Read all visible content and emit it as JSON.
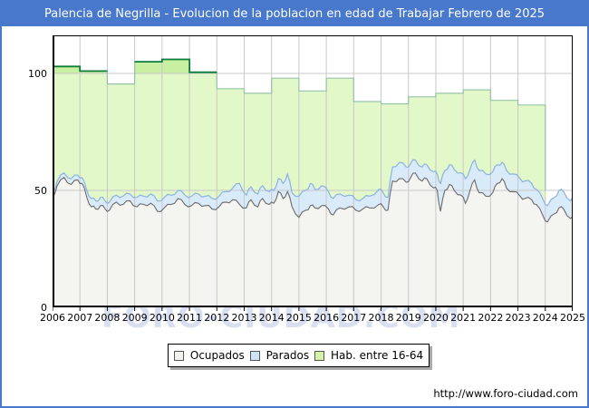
{
  "header": {
    "title": "Palencia de Negrilla - Evolucion de la poblacion en edad de Trabajar Febrero de 2025"
  },
  "watermark": {
    "text": "FORO-CIUDAD.COM"
  },
  "footer": {
    "url": "http://www.foro-ciudad.com"
  },
  "colors": {
    "frame_blue": "#4778cc",
    "grid": "#c8c8c8",
    "axis": "#000000",
    "hab_fill": "#e2f8c9",
    "hab_fill_above_100": "#c8f0a0",
    "hab_line": "#96c3a8",
    "hab_line_above_100": "#0c7c3c",
    "parados_fill": "#d9eaf9",
    "parados_line": "#8cb2e2",
    "ocupados_fill": "#f4f4f1",
    "ocupados_line": "#6b6b6b"
  },
  "legend": {
    "items": [
      {
        "label": "Ocupados",
        "swatch": "#f2f2ef",
        "border": "#555555"
      },
      {
        "label": "Parados",
        "swatch": "#cfe3f7",
        "border": "#555555"
      },
      {
        "label": "Hab. entre 16-64",
        "swatch": "#d6f2a6",
        "border": "#555555"
      }
    ]
  },
  "chart_data": {
    "type": "area",
    "title": "Palencia de Negrilla - Evolucion de la poblacion en edad de Trabajar Febrero de 2025",
    "xlabel": "",
    "ylabel": "",
    "xlim": [
      2006,
      2025.17
    ],
    "ylim": [
      0,
      116
    ],
    "x_ticks": [
      2006,
      2007,
      2008,
      2009,
      2010,
      2011,
      2012,
      2013,
      2014,
      2015,
      2016,
      2017,
      2018,
      2019,
      2020,
      2021,
      2022,
      2023,
      2024,
      2025
    ],
    "y_ticks": [
      0,
      50,
      100
    ],
    "grid": true,
    "legend_position": "bottom-center",
    "series": [
      {
        "name": "Hab. entre 16-64",
        "render": "annual-steps",
        "note": "steps end at start of 2024; values estimated from gridlines",
        "years": [
          2006,
          2007,
          2008,
          2009,
          2010,
          2011,
          2012,
          2013,
          2014,
          2015,
          2016,
          2017,
          2018,
          2019,
          2020,
          2021,
          2022,
          2023
        ],
        "values": [
          103,
          101,
          95.5,
          105,
          106,
          100.5,
          93.5,
          91.5,
          98,
          92.5,
          98,
          88,
          87,
          90,
          91.5,
          93,
          88.5,
          86.5
        ],
        "ends_at": 2024.0
      },
      {
        "name": "Parados",
        "render": "stacked-area-boundary",
        "note": "boundary shown = Ocupados + Parados (monthly)",
        "x": [
          2006.0,
          2006.17,
          2006.42,
          2006.68,
          2006.92,
          2007.08,
          2007.25,
          2007.42,
          2007.58,
          2007.75,
          2007.92,
          2008.08,
          2008.33,
          2008.58,
          2008.83,
          2009.08,
          2009.33,
          2009.58,
          2009.83,
          2010.08,
          2010.33,
          2010.58,
          2010.83,
          2011.08,
          2011.33,
          2011.58,
          2011.83,
          2012.08,
          2012.33,
          2012.58,
          2012.83,
          2013.08,
          2013.25,
          2013.5,
          2013.67,
          2013.92,
          2014.08,
          2014.25,
          2014.42,
          2014.58,
          2014.75,
          2015.0,
          2015.25,
          2015.42,
          2015.58,
          2015.83,
          2016.08,
          2016.25,
          2016.5,
          2016.83,
          2017.08,
          2017.33,
          2017.58,
          2017.92,
          2018.08,
          2018.25,
          2018.42,
          2018.67,
          2018.92,
          2019.08,
          2019.25,
          2019.5,
          2019.67,
          2019.92,
          2020.05,
          2020.17,
          2020.33,
          2020.5,
          2020.67,
          2020.92,
          2021.08,
          2021.25,
          2021.42,
          2021.58,
          2021.83,
          2022.08,
          2022.25,
          2022.42,
          2022.58,
          2022.83,
          2023.08,
          2023.25,
          2023.5,
          2023.67,
          2023.92,
          2024.08,
          2024.33,
          2024.5,
          2024.67,
          2024.92,
          2025.08
        ],
        "values": [
          48.5,
          54,
          57.5,
          55,
          56.5,
          55.5,
          50,
          46.5,
          45.5,
          47,
          45.5,
          45,
          48,
          47.5,
          48.5,
          47,
          47.5,
          48.5,
          45.5,
          47,
          48,
          50,
          48,
          47.5,
          48.5,
          47.5,
          46.5,
          47.5,
          49.5,
          51,
          53,
          48,
          51.5,
          48.5,
          52,
          49.5,
          50,
          55,
          53,
          57,
          49,
          47.5,
          50,
          53,
          50.5,
          52,
          49.5,
          46.5,
          48.5,
          48,
          46,
          46.5,
          47.5,
          50.5,
          49,
          47,
          60,
          62,
          60,
          61.5,
          63,
          60,
          61,
          58,
          57,
          53,
          58.5,
          61,
          59,
          57.5,
          55,
          59,
          63,
          58.5,
          57,
          58,
          61,
          62,
          58.5,
          57,
          55,
          54,
          53,
          50.5,
          46,
          43.5,
          47,
          50,
          49.5,
          45.5,
          47
        ]
      },
      {
        "name": "Ocupados",
        "render": "area",
        "note": "monthly values estimated from gridlines",
        "x": [
          2006.0,
          2006.17,
          2006.42,
          2006.68,
          2006.92,
          2007.08,
          2007.25,
          2007.42,
          2007.58,
          2007.75,
          2007.92,
          2008.08,
          2008.33,
          2008.58,
          2008.83,
          2009.08,
          2009.33,
          2009.58,
          2009.83,
          2010.08,
          2010.33,
          2010.58,
          2010.83,
          2011.08,
          2011.33,
          2011.58,
          2011.83,
          2012.08,
          2012.33,
          2012.58,
          2012.83,
          2013.08,
          2013.25,
          2013.5,
          2013.67,
          2013.92,
          2014.08,
          2014.25,
          2014.42,
          2014.58,
          2014.75,
          2015.0,
          2015.25,
          2015.42,
          2015.58,
          2015.83,
          2016.08,
          2016.25,
          2016.5,
          2016.83,
          2017.08,
          2017.33,
          2017.58,
          2017.92,
          2018.08,
          2018.25,
          2018.42,
          2018.67,
          2018.92,
          2019.08,
          2019.25,
          2019.5,
          2019.67,
          2019.92,
          2020.05,
          2020.17,
          2020.33,
          2020.5,
          2020.67,
          2020.92,
          2021.08,
          2021.25,
          2021.42,
          2021.58,
          2021.83,
          2022.08,
          2022.25,
          2022.42,
          2022.58,
          2022.83,
          2023.08,
          2023.25,
          2023.5,
          2023.67,
          2023.92,
          2024.08,
          2024.33,
          2024.5,
          2024.67,
          2024.92,
          2025.08
        ],
        "values": [
          47,
          52,
          55.5,
          52.5,
          54.5,
          53,
          47,
          43,
          42,
          43.5,
          42,
          41.5,
          45,
          44,
          45.5,
          43,
          44,
          44.5,
          41,
          42.5,
          44,
          46.5,
          44,
          43.5,
          44.5,
          43.5,
          42,
          43,
          45,
          46,
          44,
          42.5,
          46,
          43,
          46.5,
          44,
          44.5,
          49.5,
          46.5,
          49.5,
          43,
          38.5,
          41.5,
          43.5,
          42.5,
          43.5,
          42,
          39.5,
          42.5,
          43,
          41.5,
          42,
          42.5,
          44,
          43,
          41.5,
          54,
          55,
          53.5,
          55.5,
          57.5,
          54,
          55,
          51,
          50,
          41,
          50,
          52.5,
          50,
          48,
          44.5,
          50,
          54.5,
          49,
          47.5,
          49,
          53,
          55,
          51,
          49.5,
          47.5,
          46.5,
          46,
          44,
          39,
          36.5,
          40,
          42.5,
          42,
          38,
          38
        ]
      }
    ]
  }
}
